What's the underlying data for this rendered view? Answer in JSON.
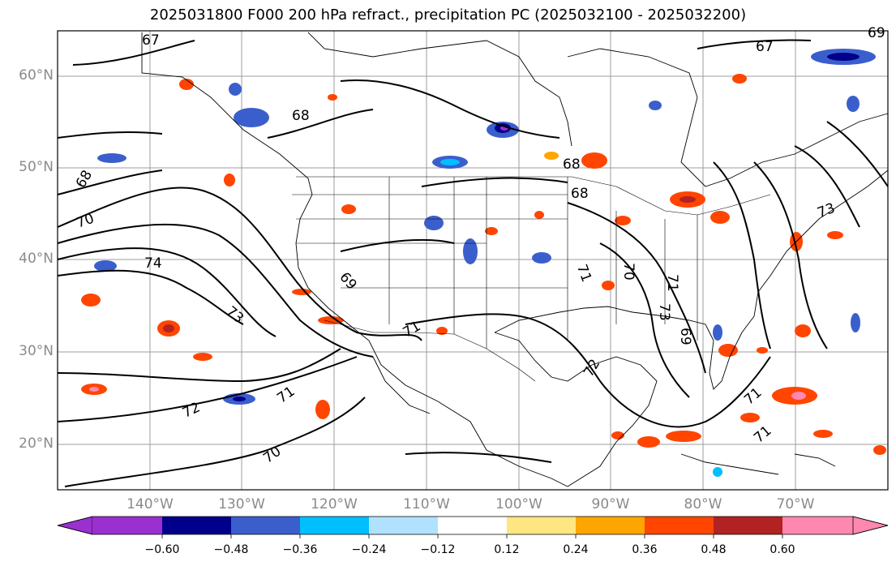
{
  "title": "2025031800 F000 200 hPa refract., precipitation PC (2025032100 - 2025032200)",
  "map": {
    "lat_labels": [
      "60°N",
      "50°N",
      "40°N",
      "30°N",
      "20°N"
    ],
    "lon_labels": [
      "140°W",
      "130°W",
      "120°W",
      "110°W",
      "100°W",
      "90°W",
      "80°W",
      "70°W"
    ],
    "contour_labels": [
      "67",
      "67",
      "69",
      "68",
      "68",
      "68",
      "68",
      "70",
      "74",
      "73",
      "72",
      "71",
      "70",
      "71",
      "71",
      "70",
      "72",
      "71",
      "69",
      "69",
      "73",
      "71",
      "71",
      "73"
    ]
  },
  "colorbar": {
    "ticks": [
      "−0.60",
      "−0.48",
      "−0.36",
      "−0.24",
      "−0.12",
      "0.12",
      "0.24",
      "0.36",
      "0.48",
      "0.60"
    ],
    "colors": [
      "#9b30d0",
      "#00008b",
      "#3a5fcd",
      "#00bfff",
      "#b0e2ff",
      "#ffffff",
      "#ffe680",
      "#ffa500",
      "#ff4500",
      "#b22222",
      "#ff88b0"
    ]
  }
}
